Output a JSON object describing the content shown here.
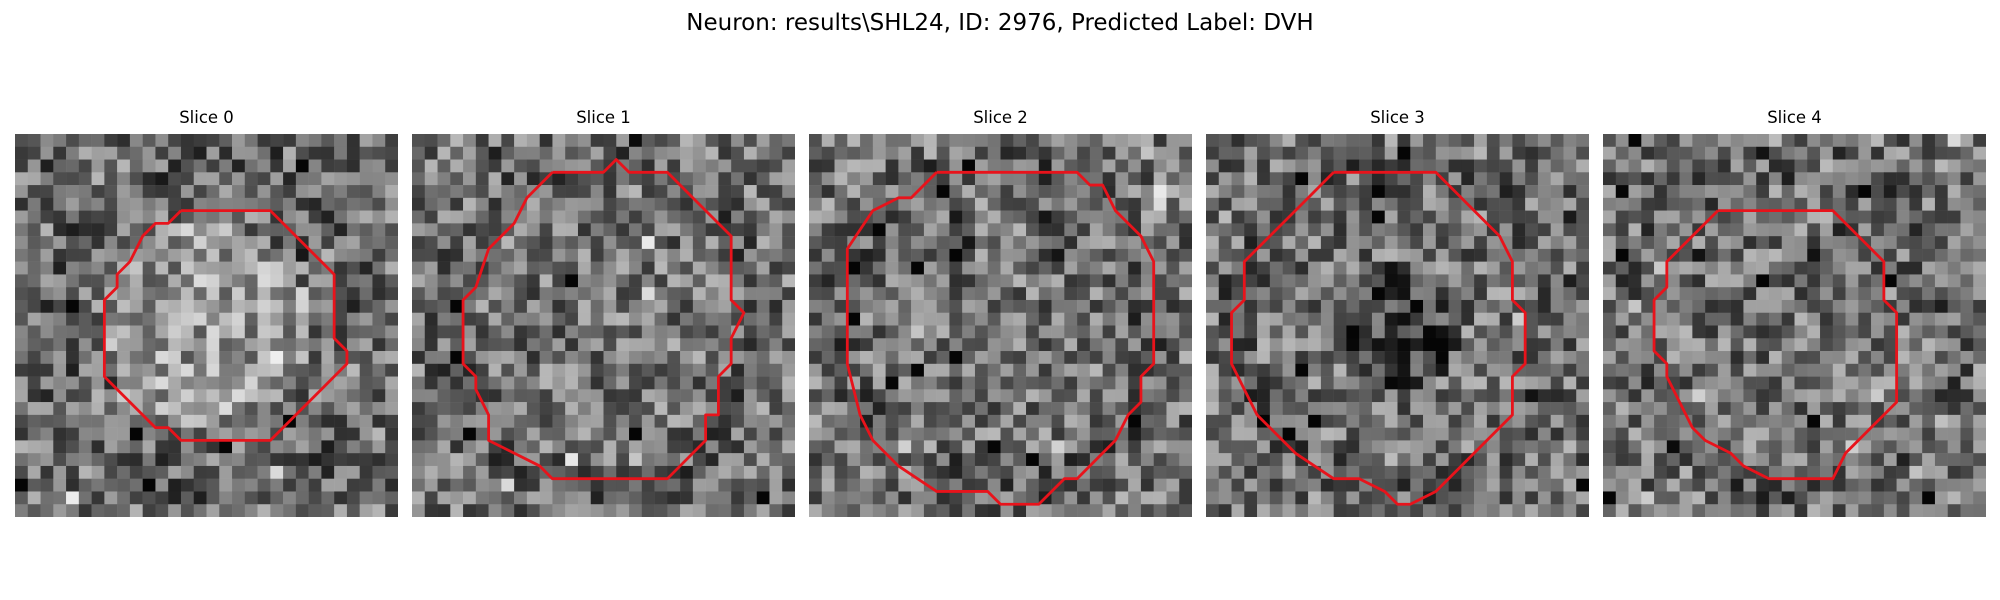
{
  "figure": {
    "title": "Neuron: results\\SHL24, ID: 2976, Predicted Label: DVH"
  },
  "panels": [
    {
      "label": "Slice 0",
      "grid": 30,
      "seed": 17,
      "center_brightness": "bright",
      "outline": [
        [
          13,
          6
        ],
        [
          15,
          6
        ],
        [
          20,
          6
        ],
        [
          21,
          7
        ],
        [
          22,
          8
        ],
        [
          24,
          10
        ],
        [
          25,
          11
        ],
        [
          25,
          16
        ],
        [
          26,
          17
        ],
        [
          26,
          18
        ],
        [
          25,
          19
        ],
        [
          24,
          20
        ],
        [
          22,
          22
        ],
        [
          21,
          23
        ],
        [
          20,
          24
        ],
        [
          19,
          24
        ],
        [
          13,
          24
        ],
        [
          12,
          23
        ],
        [
          11,
          23
        ],
        [
          9,
          21
        ],
        [
          8,
          20
        ],
        [
          7,
          19
        ],
        [
          7,
          13
        ],
        [
          8,
          12
        ],
        [
          8,
          11
        ],
        [
          9,
          10
        ],
        [
          10,
          8
        ],
        [
          11,
          7
        ],
        [
          12,
          7
        ],
        [
          13,
          6
        ]
      ]
    },
    {
      "label": "Slice 1",
      "grid": 30,
      "seed": 42,
      "center_brightness": "mixed",
      "outline": [
        [
          11,
          3
        ],
        [
          15,
          3
        ],
        [
          16,
          2
        ],
        [
          17,
          3
        ],
        [
          20,
          3
        ],
        [
          22,
          5
        ],
        [
          23,
          6
        ],
        [
          24,
          7
        ],
        [
          25,
          8
        ],
        [
          25,
          13
        ],
        [
          26,
          14
        ],
        [
          25,
          16
        ],
        [
          25,
          18
        ],
        [
          24,
          19
        ],
        [
          24,
          22
        ],
        [
          23,
          22
        ],
        [
          23,
          24
        ],
        [
          22,
          25
        ],
        [
          21,
          26
        ],
        [
          20,
          27
        ],
        [
          11,
          27
        ],
        [
          10,
          26
        ],
        [
          8,
          25
        ],
        [
          6,
          24
        ],
        [
          6,
          22
        ],
        [
          5,
          20
        ],
        [
          5,
          19
        ],
        [
          4,
          18
        ],
        [
          4,
          13
        ],
        [
          5,
          12
        ],
        [
          6,
          9
        ],
        [
          7,
          8
        ],
        [
          8,
          7
        ],
        [
          9,
          5
        ],
        [
          10,
          4
        ],
        [
          11,
          3
        ]
      ]
    },
    {
      "label": "Slice 2",
      "grid": 30,
      "seed": 7,
      "center_brightness": "mixed",
      "outline": [
        [
          10,
          3
        ],
        [
          21,
          3
        ],
        [
          22,
          4
        ],
        [
          23,
          4
        ],
        [
          24,
          6
        ],
        [
          26,
          8
        ],
        [
          27,
          10
        ],
        [
          27,
          18
        ],
        [
          26,
          19
        ],
        [
          26,
          21
        ],
        [
          25,
          22
        ],
        [
          24,
          24
        ],
        [
          23,
          25
        ],
        [
          21,
          27
        ],
        [
          20,
          27
        ],
        [
          18,
          29
        ],
        [
          15,
          29
        ],
        [
          14,
          28
        ],
        [
          10,
          28
        ],
        [
          7,
          26
        ],
        [
          5,
          24
        ],
        [
          4,
          22
        ],
        [
          3,
          18
        ],
        [
          3,
          9
        ],
        [
          5,
          6
        ],
        [
          7,
          5
        ],
        [
          8,
          5
        ],
        [
          10,
          3
        ]
      ]
    },
    {
      "label": "Slice 3",
      "grid": 30,
      "seed": 99,
      "center_brightness": "dark",
      "outline": [
        [
          10,
          3
        ],
        [
          18,
          3
        ],
        [
          21,
          6
        ],
        [
          23,
          8
        ],
        [
          24,
          10
        ],
        [
          24,
          13
        ],
        [
          25,
          14
        ],
        [
          25,
          18
        ],
        [
          24,
          19
        ],
        [
          24,
          22
        ],
        [
          22,
          24
        ],
        [
          21,
          25
        ],
        [
          19,
          27
        ],
        [
          18,
          28
        ],
        [
          16,
          29
        ],
        [
          15,
          29
        ],
        [
          14,
          28
        ],
        [
          12,
          27
        ],
        [
          10,
          27
        ],
        [
          7,
          25
        ],
        [
          5,
          23
        ],
        [
          4,
          22
        ],
        [
          3,
          20
        ],
        [
          2,
          18
        ],
        [
          2,
          14
        ],
        [
          3,
          13
        ],
        [
          3,
          10
        ],
        [
          5,
          8
        ],
        [
          8,
          5
        ],
        [
          10,
          3
        ]
      ]
    },
    {
      "label": "Slice 4",
      "grid": 30,
      "seed": 55,
      "center_brightness": "mixed",
      "outline": [
        [
          9,
          6
        ],
        [
          18,
          6
        ],
        [
          20,
          8
        ],
        [
          21,
          9
        ],
        [
          22,
          10
        ],
        [
          22,
          13
        ],
        [
          23,
          14
        ],
        [
          23,
          21
        ],
        [
          22,
          22
        ],
        [
          21,
          23
        ],
        [
          20,
          24
        ],
        [
          19,
          25
        ],
        [
          18,
          27
        ],
        [
          13,
          27
        ],
        [
          11,
          26
        ],
        [
          10,
          25
        ],
        [
          8,
          24
        ],
        [
          7,
          23
        ],
        [
          6,
          21
        ],
        [
          5,
          19
        ],
        [
          5,
          18
        ],
        [
          4,
          17
        ],
        [
          4,
          13
        ],
        [
          5,
          12
        ],
        [
          5,
          10
        ],
        [
          6,
          9
        ],
        [
          7,
          8
        ],
        [
          9,
          6
        ]
      ]
    }
  ],
  "colors": {
    "outline": "#e8131b",
    "background": "#ffffff"
  }
}
